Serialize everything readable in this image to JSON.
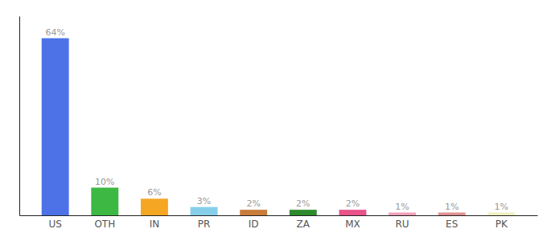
{
  "chart_data": {
    "type": "bar",
    "categories": [
      "US",
      "OTH",
      "IN",
      "PR",
      "ID",
      "ZA",
      "MX",
      "RU",
      "ES",
      "PK"
    ],
    "values": [
      64,
      10,
      6,
      3,
      2,
      2,
      2,
      1,
      1,
      1
    ],
    "value_labels": [
      "64%",
      "10%",
      "6%",
      "3%",
      "2%",
      "2%",
      "2%",
      "1%",
      "1%",
      "1%"
    ],
    "colors": [
      "#4d72e8",
      "#3cb843",
      "#f5a623",
      "#87ceeb",
      "#c97c3a",
      "#2d8a2d",
      "#e8538a",
      "#f0a0b8",
      "#e09090",
      "#f0f0c0"
    ],
    "ylim": [
      0,
      72
    ],
    "data_labels": true,
    "tick_labels": "x"
  }
}
